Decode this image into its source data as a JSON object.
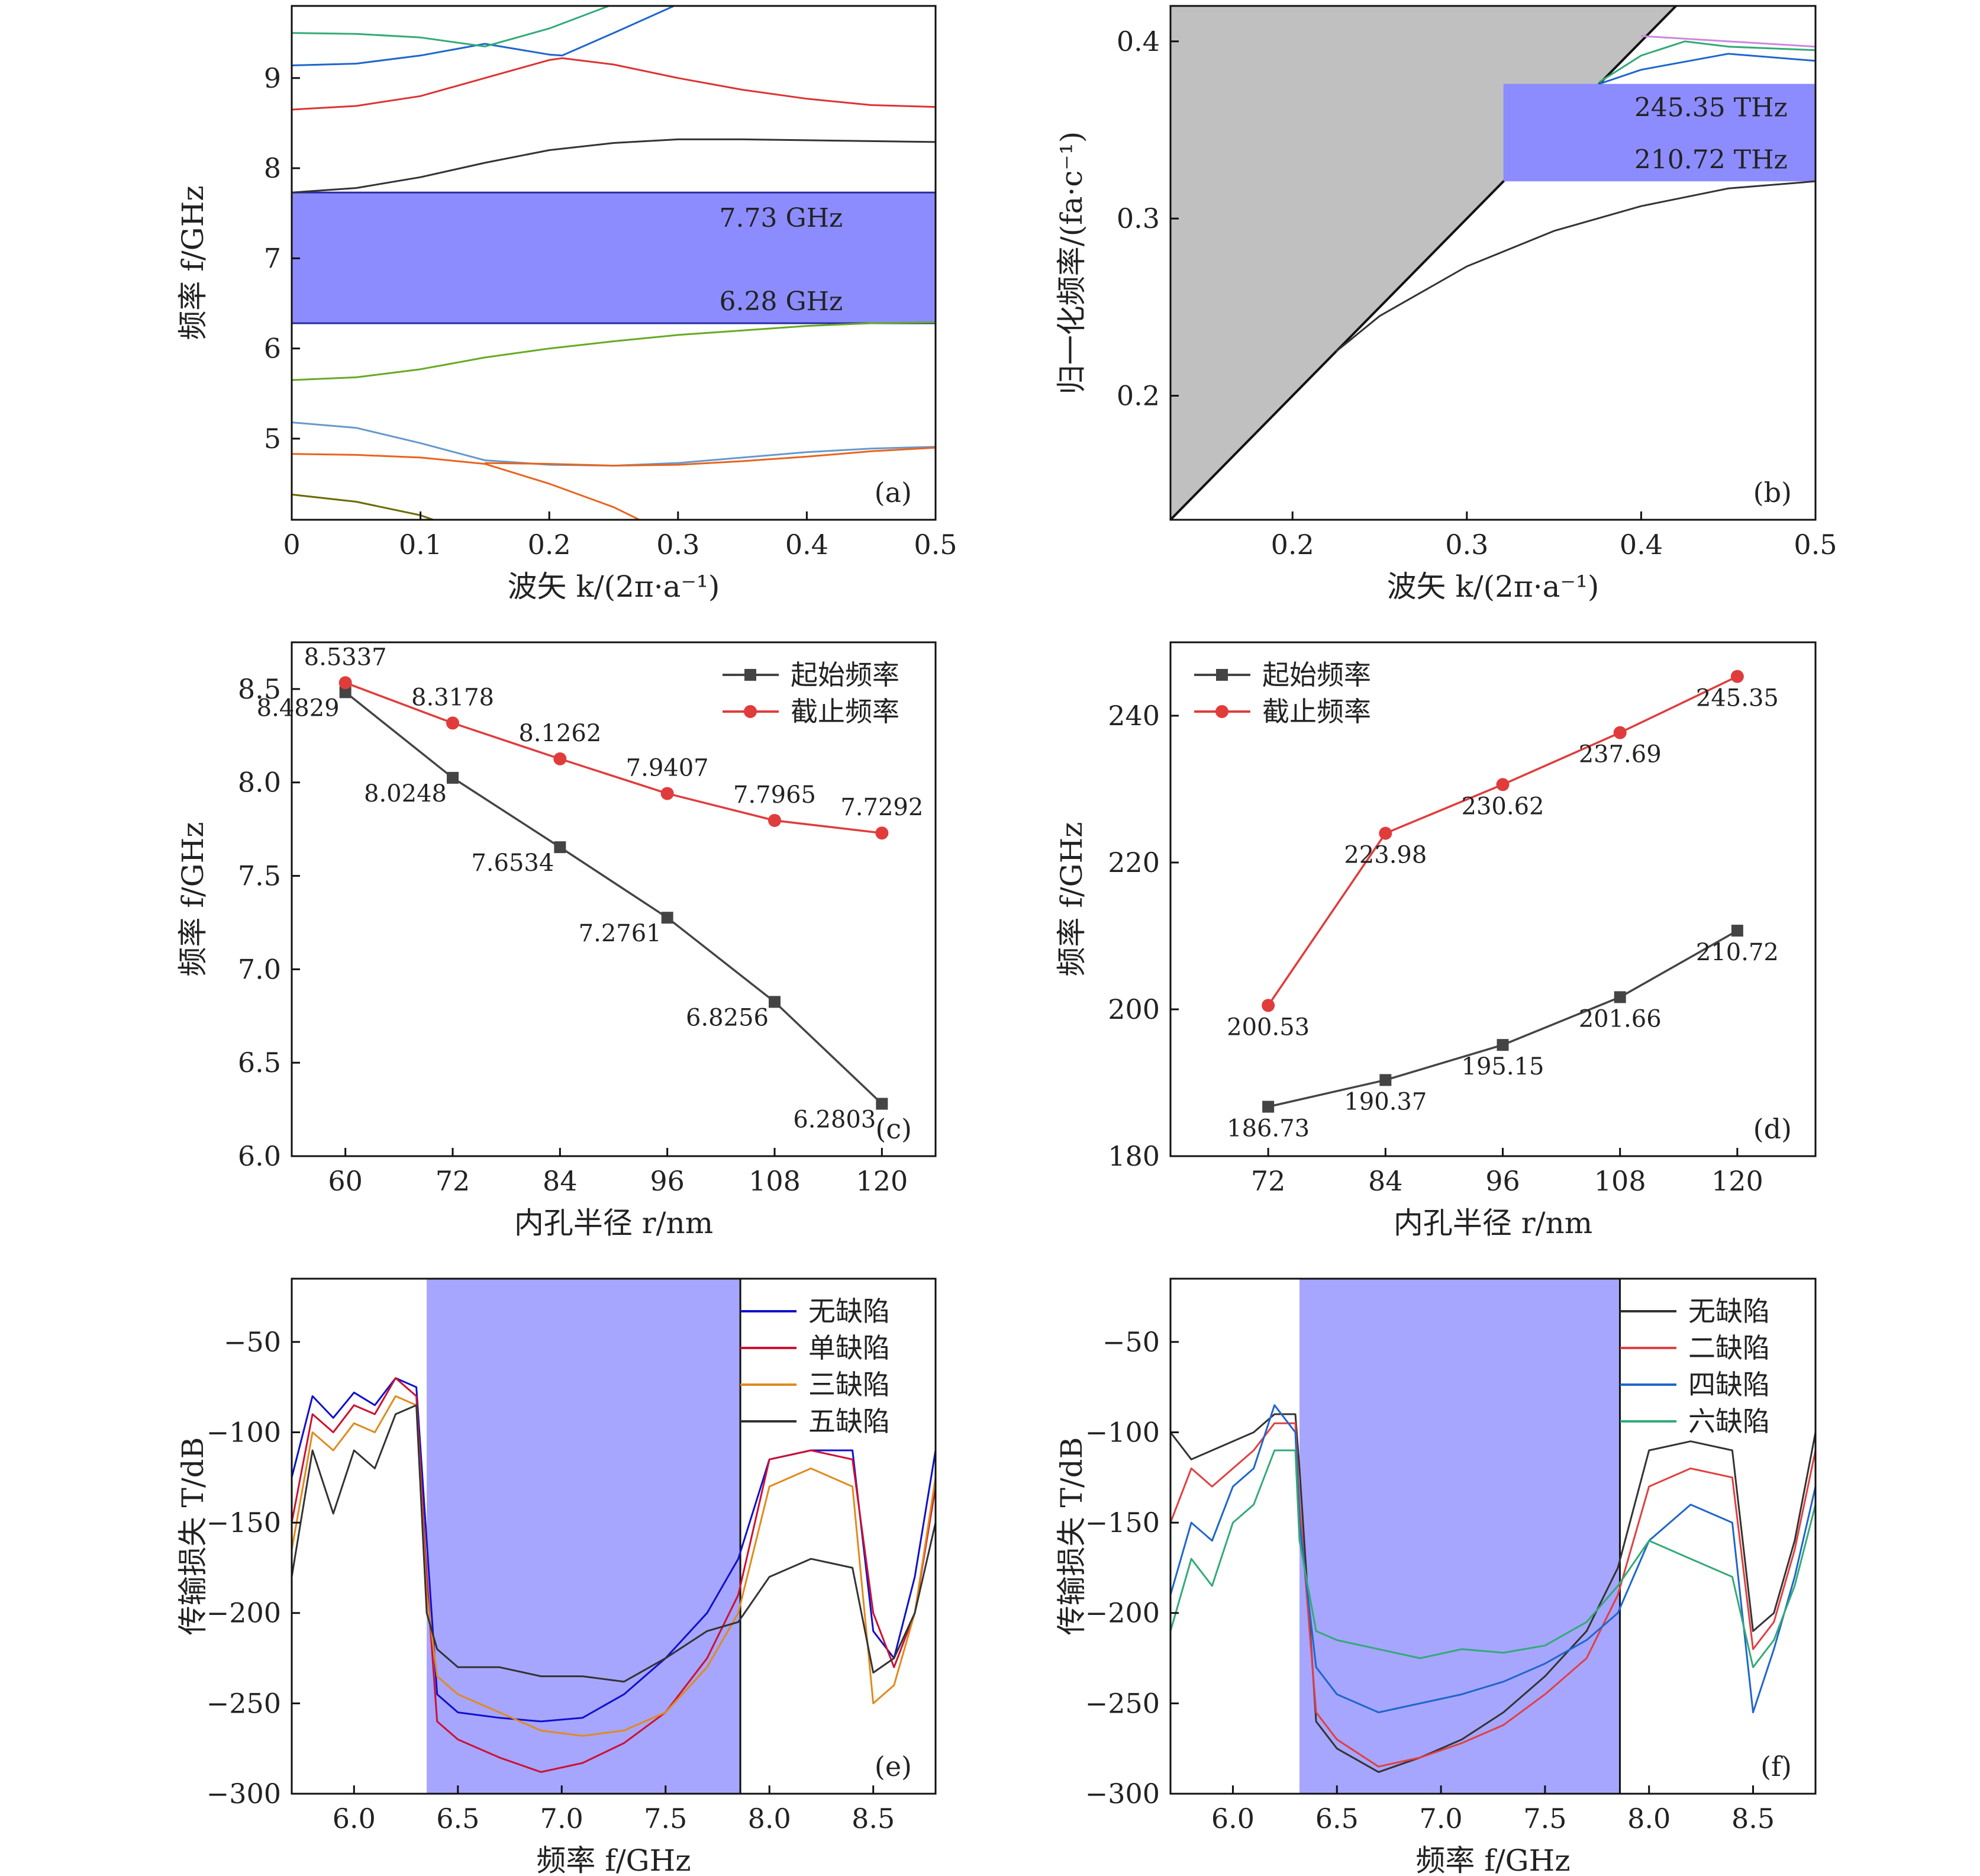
{
  "chart_data": [
    {
      "panel": "(a)",
      "type": "line",
      "xlabel": "波矢 k/(2π·a⁻¹)",
      "ylabel": "频率 f/GHz",
      "xlim": [
        0,
        0.5
      ],
      "ylim": [
        4.1,
        9.8
      ],
      "xticks": [
        "0",
        "0.1",
        "0.2",
        "0.3",
        "0.4",
        "0.5"
      ],
      "yticks": [
        "5",
        "6",
        "7",
        "8",
        "9"
      ],
      "bandgap": {
        "low": 6.28,
        "high": 7.73,
        "labels": [
          "7.73 GHz",
          "6.28 GHz"
        ],
        "color": "#8c8cff"
      },
      "series": [
        {
          "color": "#6b6b00",
          "x": [
            0,
            0.05,
            0.1,
            0.11
          ],
          "y": [
            4.38,
            4.3,
            4.15,
            4.1
          ]
        },
        {
          "color": "#e8641e",
          "x": [
            0,
            0.05,
            0.1,
            0.15,
            0.2,
            0.25,
            0.27
          ],
          "y": [
            4.83,
            4.82,
            4.79,
            4.72,
            4.5,
            4.24,
            4.1
          ]
        },
        {
          "color": "#6699cc",
          "x": [
            0,
            0.05,
            0.1,
            0.15,
            0.2,
            0.25,
            0.3,
            0.35,
            0.4,
            0.45,
            0.5
          ],
          "y": [
            5.18,
            5.12,
            4.95,
            4.76,
            4.71,
            4.7,
            4.73,
            4.79,
            4.85,
            4.89,
            4.91
          ]
        },
        {
          "color": "#e8641e",
          "x": [
            0.15,
            0.2,
            0.25,
            0.3,
            0.35,
            0.4,
            0.45,
            0.5
          ],
          "y": [
            4.73,
            4.72,
            4.7,
            4.71,
            4.75,
            4.8,
            4.86,
            4.9
          ]
        },
        {
          "color": "#66aa22",
          "x": [
            0,
            0.05,
            0.1,
            0.15,
            0.2,
            0.25,
            0.3,
            0.35,
            0.4,
            0.45,
            0.5
          ],
          "y": [
            5.65,
            5.68,
            5.77,
            5.9,
            6.0,
            6.08,
            6.15,
            6.2,
            6.25,
            6.28,
            6.29
          ]
        },
        {
          "color": "#333333",
          "x": [
            0,
            0.05,
            0.1,
            0.15,
            0.2,
            0.25,
            0.3,
            0.35,
            0.4,
            0.45,
            0.5
          ],
          "y": [
            7.73,
            7.78,
            7.9,
            8.06,
            8.2,
            8.28,
            8.32,
            8.32,
            8.31,
            8.3,
            8.29
          ]
        },
        {
          "color": "#dd3333",
          "x": [
            0,
            0.05,
            0.1,
            0.15,
            0.2,
            0.21,
            0.25,
            0.3,
            0.35,
            0.4,
            0.45,
            0.5
          ],
          "y": [
            8.65,
            8.69,
            8.8,
            9.0,
            9.2,
            9.22,
            9.15,
            9.0,
            8.87,
            8.77,
            8.7,
            8.68
          ]
        },
        {
          "color": "#1f66cc",
          "x": [
            0,
            0.05,
            0.1,
            0.15,
            0.2,
            0.21,
            0.25,
            0.3
          ],
          "y": [
            9.14,
            9.16,
            9.25,
            9.38,
            9.26,
            9.25,
            9.5,
            9.82
          ]
        },
        {
          "color": "#33aa77",
          "x": [
            0,
            0.05,
            0.1,
            0.15,
            0.2,
            0.25
          ],
          "y": [
            9.5,
            9.49,
            9.45,
            9.35,
            9.55,
            9.82
          ]
        }
      ]
    },
    {
      "panel": "(b)",
      "type": "line",
      "xlabel": "波矢 k/(2π·a⁻¹)",
      "ylabel": "归一化频率/(fa·c⁻¹)",
      "xlim": [
        0.13,
        0.5
      ],
      "ylim": [
        0.13,
        0.42
      ],
      "xticks": [
        "0.2",
        "0.3",
        "0.4",
        "0.5"
      ],
      "yticks": [
        "0.2",
        "0.3",
        "0.4"
      ],
      "bandgap": {
        "low": 0.321,
        "high": 0.376,
        "labels": [
          "245.35 THz",
          "210.72 THz"
        ],
        "color": "#8c8cff"
      },
      "light_cone_color": "#c0c0c0",
      "series": [
        {
          "color": "#333333",
          "x": [
            0.225,
            0.25,
            0.3,
            0.35,
            0.4,
            0.45,
            0.5
          ],
          "y": [
            0.225,
            0.245,
            0.273,
            0.293,
            0.307,
            0.317,
            0.321
          ]
        },
        {
          "color": "#1f66cc",
          "x": [
            0.376,
            0.4,
            0.45,
            0.5
          ],
          "y": [
            0.376,
            0.384,
            0.393,
            0.389
          ]
        },
        {
          "color": "#33aa77",
          "x": [
            0.376,
            0.4,
            0.425,
            0.45,
            0.5
          ],
          "y": [
            0.377,
            0.392,
            0.4,
            0.397,
            0.395
          ]
        },
        {
          "color": "#cc88dd",
          "x": [
            0.4,
            0.45,
            0.5
          ],
          "y": [
            0.403,
            0.4,
            0.397
          ]
        }
      ]
    },
    {
      "panel": "(c)",
      "type": "line",
      "xlabel": "内孔半径 r/nm",
      "ylabel": "频率 f/GHz",
      "xlim": [
        54,
        126
      ],
      "ylim": [
        6.0,
        8.75
      ],
      "xticks": [
        "60",
        "72",
        "84",
        "96",
        "108",
        "120"
      ],
      "yticks": [
        "6.0",
        "6.5",
        "7.0",
        "7.5",
        "8.0",
        "8.5"
      ],
      "legend": [
        "起始频率",
        "截止频率"
      ],
      "categories": [
        60,
        72,
        84,
        96,
        108,
        120
      ],
      "series": [
        {
          "name": "起始频率",
          "color": "#444444",
          "marker": "square",
          "values": [
            8.4829,
            8.0248,
            7.6534,
            7.2761,
            6.8256,
            6.2803
          ],
          "labels": [
            "8.4829",
            "8.0248",
            "7.6534",
            "7.2761",
            "6.8256",
            "6.2803"
          ]
        },
        {
          "name": "截止频率",
          "color": "#e03c3c",
          "marker": "circle",
          "values": [
            8.5337,
            8.3178,
            8.1262,
            7.9407,
            7.7965,
            7.7292
          ],
          "labels": [
            "8.5337",
            "8.3178",
            "8.1262",
            "7.9407",
            "7.7965",
            "7.7292"
          ]
        }
      ]
    },
    {
      "panel": "(d)",
      "type": "line",
      "xlabel": "内孔半径 r/nm",
      "ylabel": "频率 f/GHz",
      "xlim": [
        62,
        128
      ],
      "ylim": [
        180,
        250
      ],
      "xticks": [
        "72",
        "84",
        "96",
        "108",
        "120"
      ],
      "yticks": [
        "180",
        "200",
        "220",
        "240"
      ],
      "legend": [
        "起始频率",
        "截止频率"
      ],
      "categories": [
        72,
        84,
        96,
        108,
        120
      ],
      "series": [
        {
          "name": "起始频率",
          "color": "#444444",
          "marker": "square",
          "values": [
            186.73,
            190.37,
            195.15,
            201.66,
            210.72
          ],
          "labels": [
            "186.73",
            "190.37",
            "195.15",
            "201.66",
            "210.72"
          ]
        },
        {
          "name": "截止频率",
          "color": "#e03c3c",
          "marker": "circle",
          "values": [
            200.53,
            223.98,
            230.62,
            237.69,
            245.35
          ],
          "labels": [
            "200.53",
            "223.98",
            "230.62",
            "237.69",
            "245.35"
          ]
        }
      ]
    },
    {
      "panel": "(e)",
      "type": "line",
      "xlabel": "频率 f/GHz",
      "ylabel": "传输损失 T/dB",
      "xlim": [
        5.7,
        8.8
      ],
      "ylim": [
        -300,
        -15
      ],
      "xticks": [
        "6.0",
        "6.5",
        "7.0",
        "7.5",
        "8.0",
        "8.5"
      ],
      "yticks": [
        "−50",
        "−100",
        "−150",
        "−200",
        "−250",
        "−300"
      ],
      "bandgap": {
        "low": 6.35,
        "high": 7.86,
        "color": "#a6a6ff"
      },
      "legend": [
        "无缺陷",
        "单缺陷",
        "三缺陷",
        "五缺陷"
      ],
      "series": [
        {
          "name": "无缺陷",
          "color": "#1010cc",
          "x": [
            5.7,
            5.8,
            5.9,
            6.0,
            6.1,
            6.2,
            6.3,
            6.35,
            6.4,
            6.5,
            6.7,
            6.9,
            7.1,
            7.3,
            7.5,
            7.7,
            7.85,
            8.0,
            8.2,
            8.4,
            8.5,
            8.6,
            8.7,
            8.8
          ],
          "y": [
            -125,
            -80,
            -92,
            -78,
            -85,
            -70,
            -75,
            -160,
            -245,
            -255,
            -258,
            -260,
            -258,
            -245,
            -225,
            -200,
            -170,
            -115,
            -110,
            -110,
            -210,
            -225,
            -180,
            -110
          ]
        },
        {
          "name": "单缺陷",
          "color": "#cc1133",
          "x": [
            5.7,
            5.8,
            5.9,
            6.0,
            6.1,
            6.2,
            6.3,
            6.35,
            6.4,
            6.5,
            6.7,
            6.9,
            7.1,
            7.3,
            7.5,
            7.7,
            7.85,
            8.0,
            8.2,
            8.4,
            8.5,
            8.6,
            8.7,
            8.8
          ],
          "y": [
            -150,
            -90,
            -100,
            -85,
            -90,
            -70,
            -80,
            -180,
            -260,
            -270,
            -280,
            -288,
            -283,
            -272,
            -255,
            -225,
            -190,
            -115,
            -110,
            -115,
            -200,
            -230,
            -200,
            -130
          ]
        },
        {
          "name": "三缺陷",
          "color": "#e08a1e",
          "x": [
            5.7,
            5.8,
            5.9,
            6.0,
            6.1,
            6.2,
            6.3,
            6.35,
            6.4,
            6.5,
            6.7,
            6.9,
            7.1,
            7.3,
            7.5,
            7.7,
            7.85,
            8.0,
            8.2,
            8.4,
            8.5,
            8.6,
            8.7,
            8.8
          ],
          "y": [
            -165,
            -100,
            -110,
            -95,
            -100,
            -80,
            -85,
            -190,
            -235,
            -245,
            -255,
            -265,
            -268,
            -265,
            -255,
            -230,
            -200,
            -130,
            -120,
            -130,
            -250,
            -240,
            -200,
            -125
          ]
        },
        {
          "name": "五缺陷",
          "color": "#333333",
          "x": [
            5.7,
            5.8,
            5.9,
            6.0,
            6.1,
            6.2,
            6.3,
            6.35,
            6.4,
            6.5,
            6.7,
            6.9,
            7.1,
            7.3,
            7.5,
            7.7,
            7.85,
            8.0,
            8.2,
            8.4,
            8.5,
            8.6,
            8.7,
            8.8
          ],
          "y": [
            -180,
            -110,
            -145,
            -110,
            -120,
            -90,
            -85,
            -200,
            -220,
            -230,
            -230,
            -235,
            -235,
            -238,
            -225,
            -210,
            -205,
            -180,
            -170,
            -175,
            -233,
            -225,
            -200,
            -150
          ]
        }
      ]
    },
    {
      "panel": "(f)",
      "type": "line",
      "xlabel": "频率 f/GHz",
      "ylabel": "传输损失 T/dB",
      "xlim": [
        5.7,
        8.8
      ],
      "ylim": [
        -300,
        -15
      ],
      "xticks": [
        "6.0",
        "6.5",
        "7.0",
        "7.5",
        "8.0",
        "8.5"
      ],
      "yticks": [
        "−50",
        "−100",
        "−150",
        "−200",
        "−250",
        "−300"
      ],
      "bandgap": {
        "low": 6.32,
        "high": 7.86,
        "color": "#a6a6ff"
      },
      "legend": [
        "无缺陷",
        "二缺陷",
        "四缺陷",
        "六缺陷"
      ],
      "series": [
        {
          "name": "无缺陷",
          "color": "#333333",
          "x": [
            5.7,
            5.8,
            5.9,
            6.0,
            6.1,
            6.2,
            6.3,
            6.32,
            6.4,
            6.5,
            6.7,
            6.9,
            7.1,
            7.3,
            7.5,
            7.7,
            7.85,
            8.0,
            8.2,
            8.4,
            8.5,
            8.6,
            8.7,
            8.8
          ],
          "y": [
            -100,
            -115,
            -110,
            -105,
            -100,
            -90,
            -90,
            -120,
            -260,
            -275,
            -288,
            -280,
            -270,
            -255,
            -235,
            -210,
            -175,
            -110,
            -105,
            -110,
            -210,
            -200,
            -160,
            -100
          ]
        },
        {
          "name": "二缺陷",
          "color": "#e04040",
          "x": [
            5.7,
            5.8,
            5.9,
            6.0,
            6.1,
            6.2,
            6.3,
            6.32,
            6.4,
            6.5,
            6.7,
            6.9,
            7.1,
            7.3,
            7.5,
            7.7,
            7.85,
            8.0,
            8.2,
            8.4,
            8.5,
            8.6,
            8.7,
            8.8
          ],
          "y": [
            -150,
            -120,
            -130,
            -120,
            -110,
            -95,
            -95,
            -140,
            -255,
            -270,
            -285,
            -280,
            -272,
            -262,
            -245,
            -225,
            -190,
            -130,
            -120,
            -125,
            -220,
            -205,
            -165,
            -110
          ]
        },
        {
          "name": "四缺陷",
          "color": "#1f66cc",
          "x": [
            5.7,
            5.8,
            5.9,
            6.0,
            6.1,
            6.2,
            6.3,
            6.32,
            6.4,
            6.5,
            6.7,
            6.9,
            7.1,
            7.3,
            7.5,
            7.7,
            7.85,
            8.0,
            8.2,
            8.4,
            8.5,
            8.6,
            8.7,
            8.8
          ],
          "y": [
            -190,
            -150,
            -160,
            -130,
            -120,
            -85,
            -100,
            -150,
            -230,
            -245,
            -255,
            -250,
            -245,
            -238,
            -228,
            -215,
            -200,
            -160,
            -140,
            -150,
            -255,
            -220,
            -180,
            -130
          ]
        },
        {
          "name": "六缺陷",
          "color": "#33aa77",
          "x": [
            5.7,
            5.8,
            5.9,
            6.0,
            6.1,
            6.2,
            6.3,
            6.32,
            6.4,
            6.5,
            6.7,
            6.9,
            7.1,
            7.3,
            7.5,
            7.7,
            7.85,
            8.0,
            8.2,
            8.4,
            8.5,
            8.6,
            8.7,
            8.8
          ],
          "y": [
            -210,
            -170,
            -185,
            -150,
            -140,
            -110,
            -110,
            -160,
            -210,
            -215,
            -220,
            -225,
            -220,
            -222,
            -218,
            -205,
            -185,
            -160,
            -170,
            -180,
            -230,
            -215,
            -185,
            -140
          ]
        }
      ]
    }
  ]
}
